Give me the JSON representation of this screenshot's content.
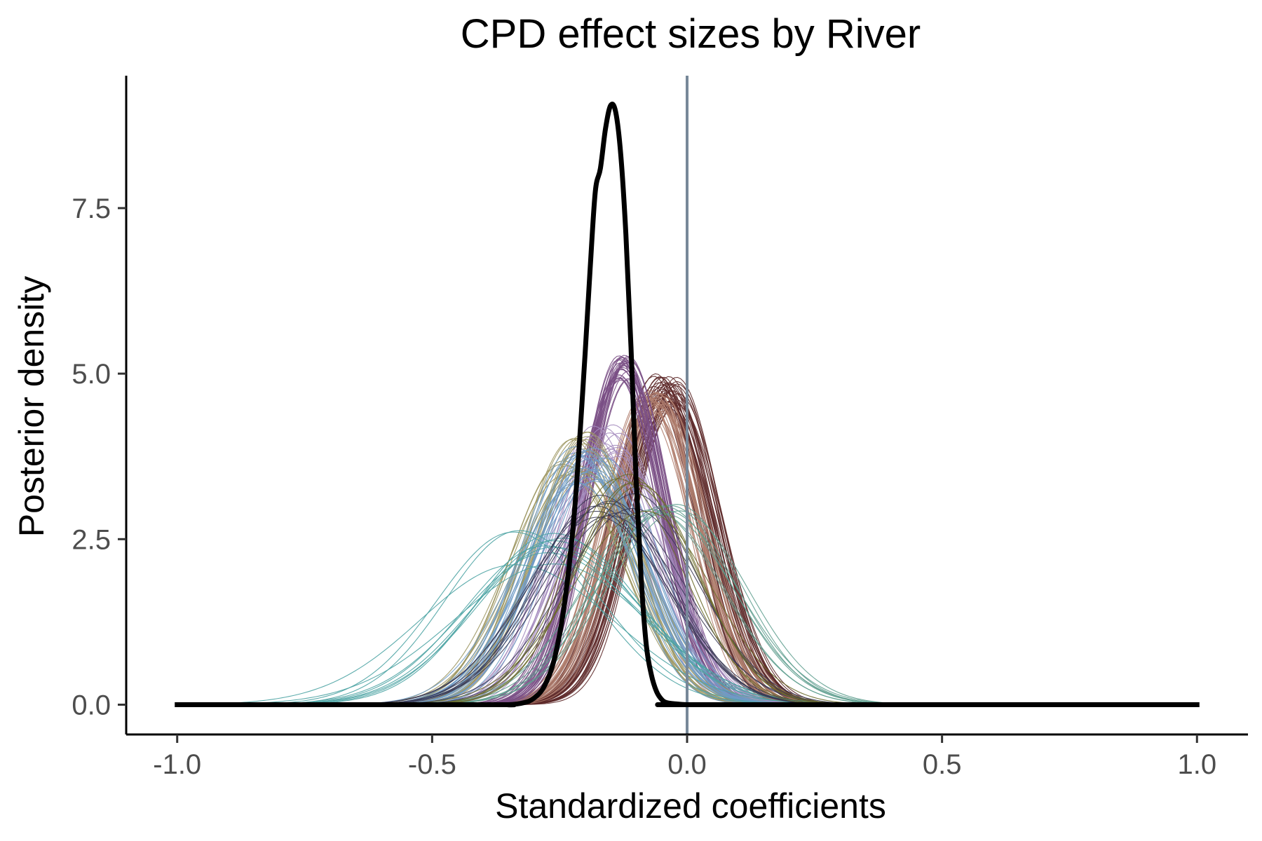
{
  "chart_data": {
    "type": "line",
    "title": "CPD effect sizes by River",
    "xlabel": "Standardized coefficients",
    "ylabel": "Posterior density",
    "xlim": [
      -1.1,
      1.1
    ],
    "ylim": [
      -0.45,
      9.5
    ],
    "x_ticks": [
      -1.0,
      -0.5,
      0.0,
      0.5,
      1.0
    ],
    "x_tick_labels": [
      "-1.0",
      "-0.5",
      "0.0",
      "0.5",
      "1.0"
    ],
    "y_ticks": [
      0.0,
      2.5,
      5.0,
      7.5
    ],
    "y_tick_labels": [
      "0.0",
      "2.5",
      "5.0",
      "7.5"
    ],
    "grid": false,
    "legend": "none",
    "reference_line": {
      "x": 0.0,
      "color": "#778899"
    },
    "draw_range": [
      -1.0,
      1.0
    ],
    "river_groups": [
      {
        "color": "#5E2A2A",
        "count": 40,
        "mean": -0.04,
        "mean_spread": 0.025,
        "peak": 4.75,
        "peak_spread": 0.25
      },
      {
        "color": "#B07E6E",
        "count": 25,
        "mean": -0.065,
        "mean_spread": 0.02,
        "peak": 4.55,
        "peak_spread": 0.2
      },
      {
        "color": "#7A4F85",
        "count": 30,
        "mean": -0.125,
        "mean_spread": 0.012,
        "peak": 5.1,
        "peak_spread": 0.2
      },
      {
        "color": "#A48BBE",
        "count": 15,
        "mean": -0.16,
        "mean_spread": 0.03,
        "peak": 4.0,
        "peak_spread": 0.25
      },
      {
        "color": "#9C9660",
        "count": 20,
        "mean": -0.22,
        "mean_spread": 0.03,
        "peak": 3.8,
        "peak_spread": 0.35
      },
      {
        "color": "#6F9BC5",
        "count": 20,
        "mean": -0.19,
        "mean_spread": 0.03,
        "peak": 3.6,
        "peak_spread": 0.3
      },
      {
        "color": "#4BA3A3",
        "count": 10,
        "mean": -0.3,
        "mean_spread": 0.06,
        "peak": 2.4,
        "peak_spread": 0.3
      },
      {
        "color": "#5F9E8F",
        "count": 8,
        "mean": -0.05,
        "mean_spread": 0.04,
        "peak": 2.9,
        "peak_spread": 0.2
      },
      {
        "color": "#3A3A55",
        "count": 10,
        "mean": -0.14,
        "mean_spread": 0.05,
        "peak": 3.1,
        "peak_spread": 0.3
      },
      {
        "color": "#6B6B2A",
        "count": 6,
        "mean": -0.12,
        "mean_spread": 0.04,
        "peak": 3.2,
        "peak_spread": 0.3
      }
    ],
    "overall": {
      "color": "#000000",
      "x": [
        -1.0,
        -0.4,
        -0.35,
        -0.32,
        -0.3,
        -0.28,
        -0.26,
        -0.24,
        -0.22,
        -0.2,
        -0.19,
        -0.18,
        -0.17,
        -0.16,
        -0.15,
        -0.14,
        -0.13,
        -0.12,
        -0.11,
        -0.1,
        -0.09,
        -0.08,
        -0.07,
        -0.06,
        -0.05,
        -0.04,
        -0.02,
        0.0,
        0.02,
        1.0
      ],
      "y": [
        0.0,
        0.0,
        0.0,
        0.03,
        0.1,
        0.28,
        0.7,
        1.55,
        3.0,
        5.3,
        6.6,
        7.75,
        8.1,
        8.7,
        9.05,
        8.95,
        8.3,
        7.1,
        5.4,
        3.4,
        1.9,
        0.9,
        0.45,
        0.2,
        0.08,
        0.03,
        0.01,
        0.0,
        0.0,
        0.0
      ]
    }
  }
}
